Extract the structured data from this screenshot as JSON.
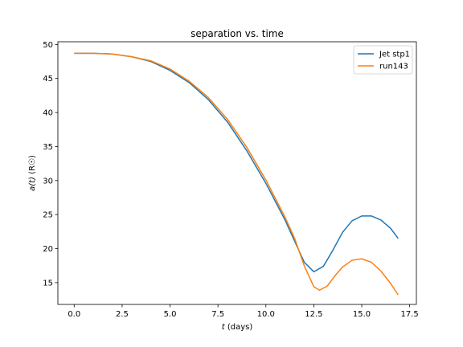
{
  "chart_data": {
    "type": "line",
    "title": "separation vs. time",
    "xlabel_italic": "t",
    "xlabel_rest": " (days)",
    "ylabel_italic": "a(t)",
    "ylabel_rest": " (R☉)",
    "xlim": [
      -0.85,
      17.85
    ],
    "ylim": [
      11.8,
      50.4
    ],
    "xticks": [
      0.0,
      2.5,
      5.0,
      7.5,
      10.0,
      12.5,
      15.0,
      17.5
    ],
    "xtick_labels": [
      "0.0",
      "2.5",
      "5.0",
      "7.5",
      "10.0",
      "12.5",
      "15.0",
      "17.5"
    ],
    "yticks": [
      15,
      20,
      25,
      30,
      35,
      40,
      45,
      50
    ],
    "ytick_labels": [
      "15",
      "20",
      "25",
      "30",
      "35",
      "40",
      "45",
      "50"
    ],
    "grid": false,
    "legend_position": "upper right",
    "series": [
      {
        "name": "Jet stp1",
        "color": "#1f77b4",
        "x": [
          0.0,
          1.0,
          2.0,
          3.0,
          4.0,
          5.0,
          6.0,
          7.0,
          8.0,
          9.0,
          10.0,
          11.0,
          11.5,
          12.0,
          12.5,
          13.0,
          13.5,
          14.0,
          14.5,
          15.0,
          15.5,
          16.0,
          16.5,
          16.9
        ],
        "y": [
          48.7,
          48.7,
          48.6,
          48.2,
          47.5,
          46.2,
          44.4,
          41.9,
          38.6,
          34.4,
          29.6,
          24.2,
          21.1,
          18.0,
          16.6,
          17.4,
          19.8,
          22.4,
          24.1,
          24.8,
          24.8,
          24.2,
          23.0,
          21.5
        ]
      },
      {
        "name": "run143",
        "color": "#ff7f0e",
        "x": [
          0.0,
          1.0,
          2.0,
          3.0,
          4.0,
          5.0,
          6.0,
          7.0,
          8.0,
          9.0,
          10.0,
          11.0,
          11.5,
          12.0,
          12.5,
          12.8,
          13.2,
          13.6,
          14.0,
          14.5,
          15.0,
          15.5,
          16.0,
          16.5,
          16.9
        ],
        "y": [
          48.7,
          48.7,
          48.6,
          48.2,
          47.6,
          46.4,
          44.6,
          42.2,
          39.0,
          34.9,
          30.1,
          24.6,
          21.5,
          17.5,
          14.4,
          13.9,
          14.5,
          16.0,
          17.3,
          18.3,
          18.5,
          18.0,
          16.7,
          14.9,
          13.2
        ]
      }
    ]
  }
}
